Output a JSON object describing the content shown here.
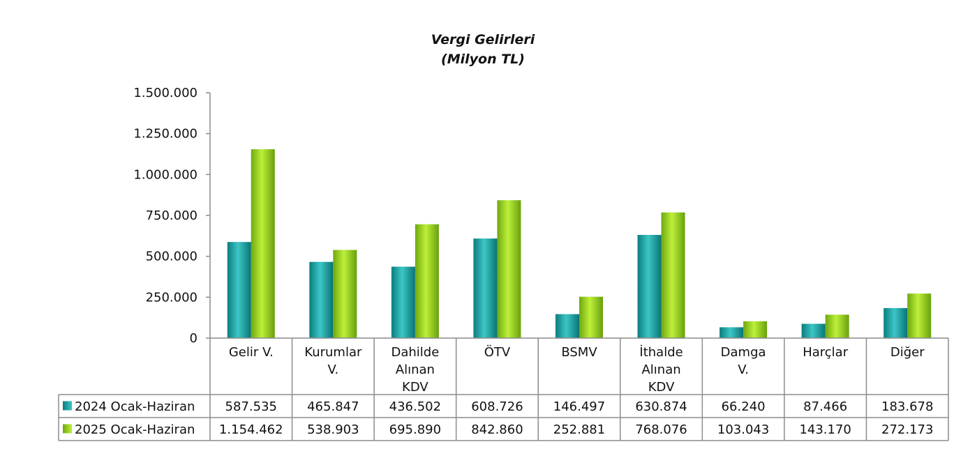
{
  "chart_data": {
    "type": "bar",
    "title": "Vergi Gelirleri",
    "subtitle": "(Milyon TL)",
    "categories": [
      [
        "Gelir V."
      ],
      [
        "Kurumlar",
        "V."
      ],
      [
        "Dahilde",
        "Alınan",
        "KDV"
      ],
      [
        "ÖTV"
      ],
      [
        "BSMV"
      ],
      [
        "İthalde",
        "Alınan",
        "KDV"
      ],
      [
        "Damga",
        "V."
      ],
      [
        "Harçlar"
      ],
      [
        "Diğer"
      ]
    ],
    "series": [
      {
        "name": "2024 Ocak-Haziran",
        "color": "#1aa5a5",
        "values": [
          587535,
          465847,
          436502,
          608726,
          146497,
          630874,
          66240,
          87466,
          183678
        ],
        "labels": [
          "587.535",
          "465.847",
          "436.502",
          "608.726",
          "146.497",
          "630.874",
          "66.240",
          "87.466",
          "183.678"
        ]
      },
      {
        "name": "2025 Ocak-Haziran",
        "color": "#99d11c",
        "values": [
          1154462,
          538903,
          695890,
          842860,
          252881,
          768076,
          103043,
          143170,
          272173
        ],
        "labels": [
          "1.154.462",
          "538.903",
          "695.890",
          "842.860",
          "252.881",
          "768.076",
          "103.043",
          "143.170",
          "272.173"
        ]
      }
    ],
    "ylim": [
      0,
      1500000
    ],
    "yticks": [
      0,
      250000,
      500000,
      750000,
      1000000,
      1250000,
      1500000
    ],
    "ytick_labels": [
      "0",
      "250.000",
      "500.000",
      "750.000",
      "1.000.000",
      "1.250.000",
      "1.500.000"
    ],
    "grid": false,
    "legend": "data-table-left"
  }
}
